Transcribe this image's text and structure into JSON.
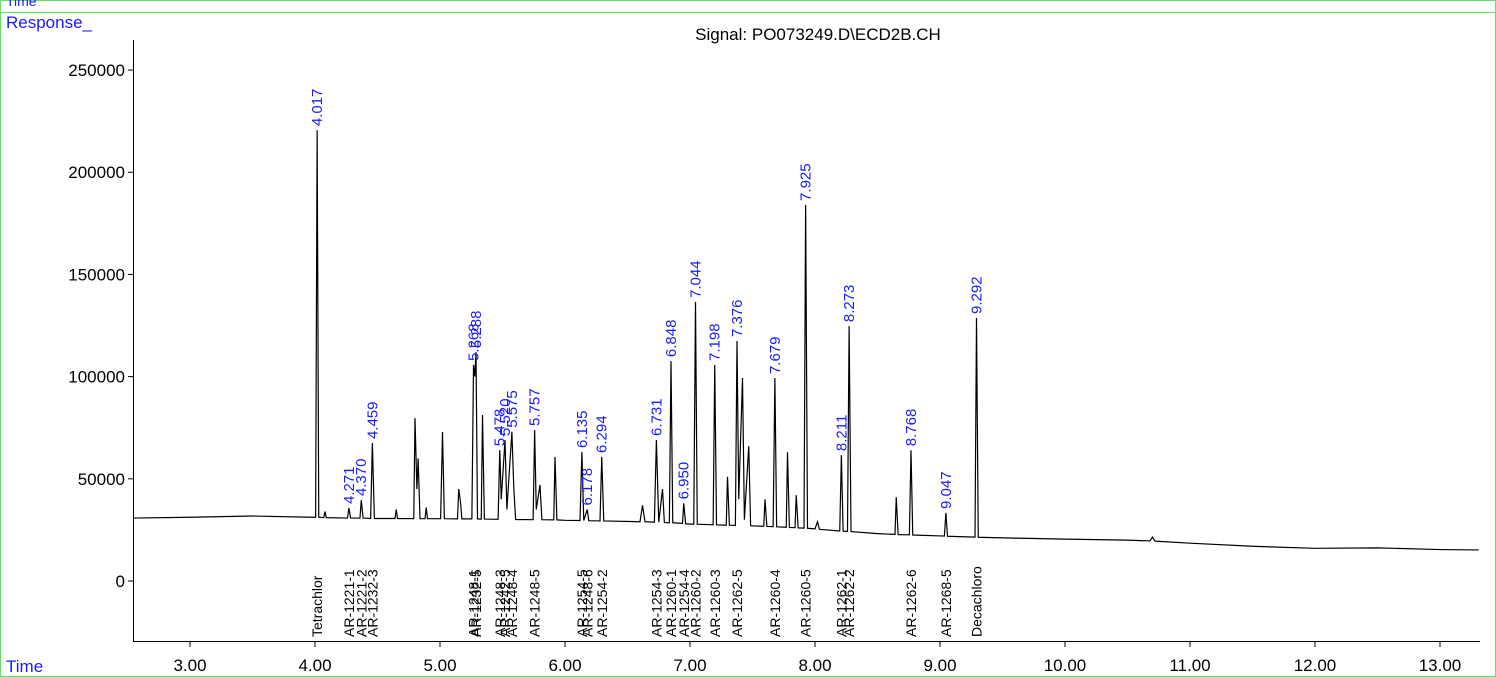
{
  "chart_data": {
    "type": "line",
    "header": "Time",
    "title": "Signal: PO073249.D\\ECD2B.CH",
    "y_label": "Response_",
    "x_label": "Time",
    "color": "#000000",
    "xlim": [
      2.544,
      13.32
    ],
    "ylim": [
      -29350,
      264700
    ],
    "xticks": [
      {
        "value": 3,
        "label": "3.00"
      },
      {
        "value": 4,
        "label": "4.00"
      },
      {
        "value": 5,
        "label": "5.00"
      },
      {
        "value": 6,
        "label": "6.00"
      },
      {
        "value": 7,
        "label": "7.00"
      },
      {
        "value": 8,
        "label": "8.00"
      },
      {
        "value": 9,
        "label": "9.00"
      },
      {
        "value": 10,
        "label": "10.00"
      },
      {
        "value": 11,
        "label": "11.00"
      },
      {
        "value": 12,
        "label": "12.00"
      },
      {
        "value": 13,
        "label": "13.00"
      }
    ],
    "yticks": [
      0,
      50000,
      100000,
      150000,
      200000,
      250000
    ],
    "x": [
      2.55,
      3.0,
      3.5,
      3.98,
      4.005,
      4.017,
      4.03,
      4.07,
      4.08,
      4.09,
      4.26,
      4.271,
      4.285,
      4.36,
      4.37,
      4.385,
      4.445,
      4.459,
      4.475,
      4.64,
      4.65,
      4.66,
      4.79,
      4.8,
      4.815,
      4.825,
      4.84,
      4.88,
      4.89,
      4.9,
      5.005,
      5.02,
      5.035,
      5.14,
      5.15,
      5.165,
      5.175,
      5.255,
      5.268,
      5.278,
      5.288,
      5.3,
      5.33,
      5.34,
      5.355,
      5.465,
      5.478,
      5.49,
      5.52,
      5.535,
      5.575,
      5.59,
      5.605,
      5.745,
      5.757,
      5.77,
      5.8,
      5.815,
      5.91,
      5.92,
      5.935,
      6.0,
      6.12,
      6.135,
      6.15,
      6.178,
      6.19,
      6.28,
      6.294,
      6.31,
      6.6,
      6.62,
      6.64,
      6.715,
      6.731,
      6.75,
      6.78,
      6.795,
      6.835,
      6.848,
      6.862,
      6.94,
      6.95,
      6.965,
      7.03,
      7.044,
      7.058,
      7.185,
      7.198,
      7.212,
      7.29,
      7.3,
      7.315,
      7.363,
      7.376,
      7.39,
      7.42,
      7.435,
      7.47,
      7.485,
      7.59,
      7.6,
      7.615,
      7.665,
      7.679,
      7.693,
      7.77,
      7.78,
      7.795,
      7.84,
      7.85,
      7.865,
      7.912,
      7.925,
      7.94,
      8.0,
      8.02,
      8.035,
      8.198,
      8.211,
      8.225,
      8.26,
      8.273,
      8.288,
      8.5,
      8.64,
      8.65,
      8.665,
      8.755,
      8.768,
      8.782,
      9.035,
      9.047,
      9.06,
      9.28,
      9.292,
      9.306,
      9.6,
      10.0,
      10.5,
      10.68,
      10.7,
      10.72,
      11.0,
      11.5,
      12.0,
      12.5,
      13.0,
      13.31
    ],
    "values": [
      30800,
      31200,
      31800,
      31200,
      31200,
      220600,
      31200,
      31000,
      34000,
      31000,
      30800,
      35700,
      30800,
      30800,
      39600,
      30800,
      30600,
      67500,
      30600,
      30600,
      35000,
      30600,
      30500,
      79700,
      45000,
      60000,
      30500,
      30500,
      36000,
      30500,
      30500,
      72900,
      30500,
      30400,
      45000,
      38000,
      30400,
      30400,
      105700,
      100000,
      112000,
      30400,
      30300,
      81200,
      30300,
      30200,
      64000,
      40000,
      69000,
      35000,
      73000,
      46000,
      30100,
      30000,
      73900,
      35000,
      47000,
      30000,
      29900,
      60700,
      29900,
      29700,
      29600,
      63100,
      29600,
      35000,
      29500,
      29400,
      60700,
      29400,
      29000,
      37000,
      29000,
      28800,
      69000,
      28800,
      45000,
      28600,
      28500,
      107600,
      28500,
      28200,
      38000,
      28000,
      27800,
      136500,
      27800,
      27500,
      105700,
      27500,
      27300,
      51000,
      27300,
      27200,
      117400,
      40000,
      99300,
      30000,
      66000,
      27000,
      26800,
      40000,
      26700,
      26600,
      99300,
      26500,
      26300,
      63000,
      26200,
      26100,
      42000,
      26000,
      25900,
      184000,
      25800,
      25500,
      29000,
      25300,
      24500,
      61600,
      24400,
      24300,
      124700,
      24200,
      23200,
      22800,
      41000,
      22700,
      22600,
      64000,
      22500,
      22000,
      33300,
      21900,
      21500,
      128700,
      21400,
      21000,
      20500,
      20000,
      19600,
      21500,
      19500,
      18500,
      17000,
      16000,
      16200,
      15400,
      15200
    ],
    "peak_labels": [
      {
        "label": "4.017",
        "x": 4.017,
        "y": 220600
      },
      {
        "label": "4.271",
        "x": 4.271,
        "y": 35700
      },
      {
        "label": "4.370",
        "x": 4.37,
        "y": 39600
      },
      {
        "label": "4.459",
        "x": 4.459,
        "y": 67500
      },
      {
        "label": "5.268",
        "x": 5.268,
        "y": 105700
      },
      {
        "label": "5.288",
        "x": 5.288,
        "y": 112000
      },
      {
        "label": "5.478",
        "x": 5.478,
        "y": 64000
      },
      {
        "label": "5.520",
        "x": 5.52,
        "y": 69000
      },
      {
        "label": "5.575",
        "x": 5.575,
        "y": 73000
      },
      {
        "label": "5.757",
        "x": 5.757,
        "y": 73900
      },
      {
        "label": "6.135",
        "x": 6.135,
        "y": 63100
      },
      {
        "label": "6.178",
        "x": 6.178,
        "y": 35000
      },
      {
        "label": "6.294",
        "x": 6.294,
        "y": 60700
      },
      {
        "label": "6.731",
        "x": 6.731,
        "y": 69000
      },
      {
        "label": "6.848",
        "x": 6.848,
        "y": 107600
      },
      {
        "label": "6.950",
        "x": 6.95,
        "y": 38000
      },
      {
        "label": "7.044",
        "x": 7.044,
        "y": 136500
      },
      {
        "label": "7.198",
        "x": 7.198,
        "y": 105700
      },
      {
        "label": "7.376",
        "x": 7.376,
        "y": 117400
      },
      {
        "label": "7.679",
        "x": 7.679,
        "y": 99300
      },
      {
        "label": "7.925",
        "x": 7.925,
        "y": 184000
      },
      {
        "label": "8.211",
        "x": 8.211,
        "y": 61600
      },
      {
        "label": "8.273",
        "x": 8.273,
        "y": 124700
      },
      {
        "label": "8.768",
        "x": 8.768,
        "y": 64000
      },
      {
        "label": "9.047",
        "x": 9.047,
        "y": 33300
      },
      {
        "label": "9.292",
        "x": 9.292,
        "y": 128700
      }
    ],
    "compounds": [
      {
        "label": "Tetrachlor",
        "x": 4.017
      },
      {
        "label": "AR-1221-1",
        "x": 4.271
      },
      {
        "label": "AR-1221-2",
        "x": 4.37
      },
      {
        "label": "AR-1232-3",
        "x": 4.459
      },
      {
        "label": "AR-1248-1",
        "x": 5.268
      },
      {
        "label": "AR-1232-5",
        "x": 5.288
      },
      {
        "label": "AR-1248-3",
        "x": 5.478
      },
      {
        "label": "AR-1242-5",
        "x": 5.52
      },
      {
        "label": "AR-1248-4",
        "x": 5.575
      },
      {
        "label": "AR-1248-5",
        "x": 5.757
      },
      {
        "label": "AR-1254-5",
        "x": 6.135
      },
      {
        "label": "AR-1248-6",
        "x": 6.178
      },
      {
        "label": "AR-1254-2",
        "x": 6.294
      },
      {
        "label": "AR-1254-3",
        "x": 6.731
      },
      {
        "label": "AR-1260-1",
        "x": 6.848
      },
      {
        "label": "AR-1254-4",
        "x": 6.95
      },
      {
        "label": "AR-1260-2",
        "x": 7.044
      },
      {
        "label": "AR-1260-3",
        "x": 7.198
      },
      {
        "label": "AR-1262-5",
        "x": 7.376
      },
      {
        "label": "AR-1260-4",
        "x": 7.679
      },
      {
        "label": "AR-1260-5",
        "x": 7.925
      },
      {
        "label": "AR-1262-1",
        "x": 8.211
      },
      {
        "label": "AR-1262-2",
        "x": 8.273
      },
      {
        "label": "AR-1262-6",
        "x": 8.768
      },
      {
        "label": "AR-1268-5",
        "x": 9.047
      },
      {
        "label": "Decachloro",
        "x": 9.292
      }
    ]
  }
}
